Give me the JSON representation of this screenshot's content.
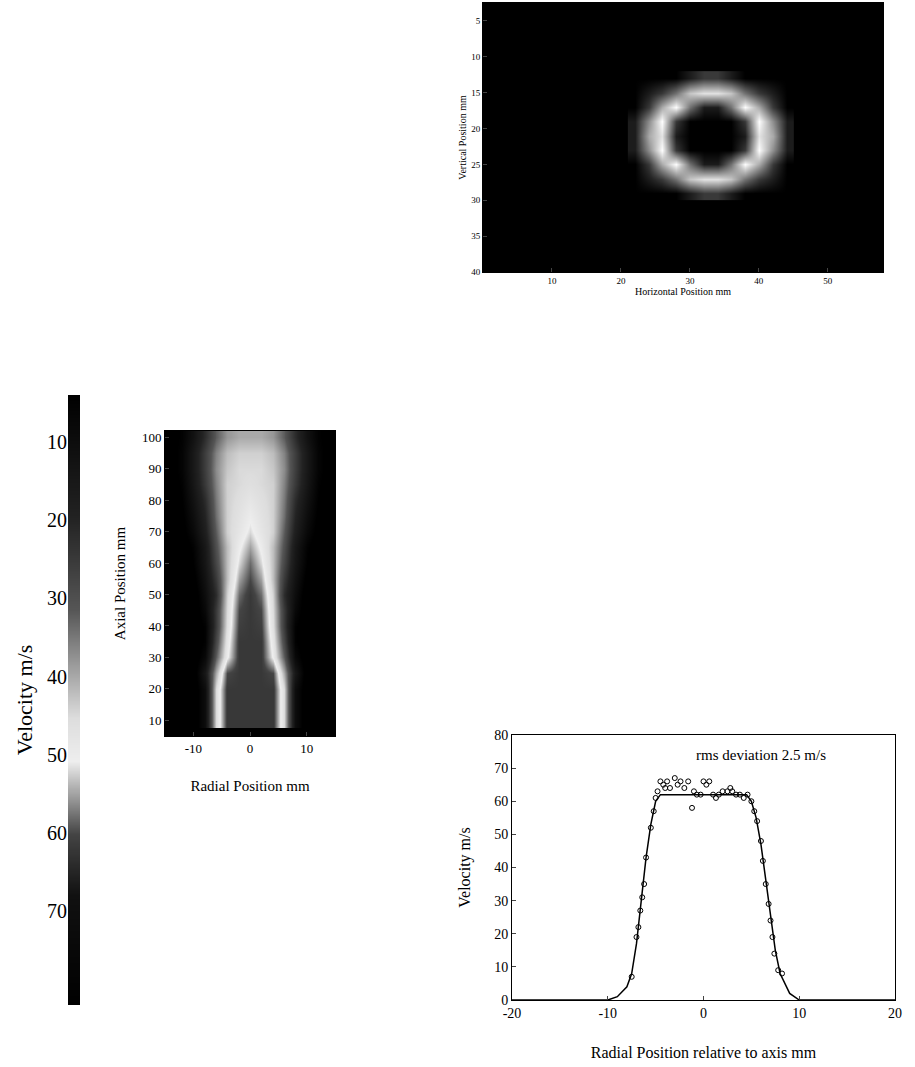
{
  "chart_data": [
    {
      "type": "heatmap",
      "x_label": "Horizontal Position mm",
      "y_label": "Vertical Position mm",
      "x": [
        22,
        24,
        26,
        28,
        30,
        32,
        34,
        36,
        38,
        40,
        42,
        44
      ],
      "y": [
        13,
        15,
        17,
        19,
        21,
        23,
        25,
        27,
        29
      ],
      "z": [
        [
          0,
          0,
          0,
          0,
          1,
          2,
          2,
          1,
          0,
          0,
          0,
          0
        ],
        [
          0,
          1,
          2,
          4,
          7,
          8,
          8,
          7,
          4,
          2,
          1,
          0
        ],
        [
          0,
          2,
          6,
          9,
          4,
          1,
          1,
          4,
          9,
          6,
          2,
          0
        ],
        [
          1,
          5,
          9,
          2,
          0,
          0,
          0,
          0,
          2,
          9,
          5,
          1
        ],
        [
          1,
          6,
          8,
          1,
          0,
          0,
          0,
          0,
          1,
          8,
          6,
          1
        ],
        [
          1,
          5,
          9,
          2,
          0,
          0,
          0,
          0,
          2,
          9,
          5,
          1
        ],
        [
          0,
          2,
          6,
          9,
          4,
          1,
          1,
          4,
          9,
          6,
          2,
          0
        ],
        [
          0,
          1,
          2,
          4,
          7,
          8,
          8,
          7,
          4,
          2,
          1,
          0
        ],
        [
          0,
          0,
          0,
          0,
          1,
          2,
          2,
          1,
          0,
          0,
          0,
          0
        ]
      ],
      "xlim": [
        0,
        58
      ],
      "ylim": [
        40,
        2.5
      ],
      "xticks": [
        10,
        20,
        30,
        40,
        50
      ],
      "yticks": [
        5,
        10,
        15,
        20,
        25,
        30,
        35,
        40
      ]
    },
    {
      "type": "heatmap",
      "x_label": "Radial Position mm",
      "y_label": "Axial Position mm",
      "x": [
        -14,
        -12,
        -10,
        -8,
        -6,
        -4,
        -2,
        0,
        2,
        4,
        6,
        8,
        10,
        12,
        14
      ],
      "y": [
        10,
        15,
        20,
        25,
        30,
        35,
        40,
        45,
        50,
        55,
        60,
        65,
        70,
        75,
        80,
        85,
        90,
        95,
        100
      ],
      "z": [
        [
          0,
          0,
          0,
          10,
          45,
          62,
          62,
          62,
          62,
          62,
          45,
          10,
          0,
          0,
          0
        ],
        [
          0,
          0,
          0,
          10,
          45,
          62,
          62,
          62,
          62,
          62,
          45,
          10,
          0,
          0,
          0
        ],
        [
          0,
          0,
          0,
          10,
          45,
          62,
          62,
          62,
          62,
          62,
          45,
          10,
          0,
          0,
          0
        ],
        [
          0,
          0,
          0,
          15,
          40,
          60,
          62,
          62,
          62,
          60,
          40,
          15,
          0,
          0,
          0
        ],
        [
          0,
          0,
          0,
          8,
          32,
          50,
          62,
          62,
          62,
          50,
          32,
          8,
          0,
          0,
          0
        ],
        [
          0,
          0,
          0,
          5,
          28,
          48,
          62,
          62,
          62,
          48,
          28,
          5,
          0,
          0,
          0
        ],
        [
          0,
          0,
          0,
          5,
          25,
          46,
          61,
          62,
          61,
          46,
          25,
          5,
          0,
          0,
          0
        ],
        [
          0,
          0,
          0,
          8,
          25,
          45,
          60,
          62,
          60,
          45,
          25,
          8,
          0,
          0,
          0
        ],
        [
          0,
          0,
          0,
          10,
          22,
          44,
          58,
          62,
          58,
          44,
          22,
          10,
          0,
          0,
          0
        ],
        [
          0,
          0,
          2,
          12,
          25,
          42,
          55,
          60,
          55,
          42,
          25,
          12,
          2,
          0,
          0
        ],
        [
          0,
          0,
          4,
          14,
          28,
          42,
          52,
          58,
          52,
          42,
          28,
          14,
          4,
          0,
          0
        ],
        [
          0,
          0,
          5,
          15,
          30,
          42,
          50,
          55,
          50,
          42,
          30,
          15,
          5,
          0,
          0
        ],
        [
          0,
          2,
          8,
          18,
          32,
          44,
          48,
          52,
          48,
          44,
          32,
          18,
          8,
          2,
          0
        ],
        [
          0,
          3,
          10,
          20,
          34,
          44,
          47,
          50,
          47,
          44,
          34,
          20,
          10,
          3,
          0
        ],
        [
          0,
          4,
          12,
          22,
          35,
          44,
          46,
          48,
          46,
          44,
          35,
          22,
          12,
          4,
          0
        ],
        [
          1,
          5,
          14,
          25,
          36,
          44,
          45,
          46,
          45,
          44,
          36,
          25,
          14,
          5,
          1
        ],
        [
          2,
          6,
          15,
          26,
          37,
          43,
          45,
          45,
          45,
          43,
          37,
          26,
          15,
          6,
          2
        ],
        [
          2,
          6,
          15,
          26,
          36,
          42,
          44,
          44,
          44,
          42,
          36,
          26,
          15,
          6,
          2
        ],
        [
          2,
          5,
          12,
          22,
          32,
          38,
          40,
          40,
          40,
          38,
          32,
          22,
          12,
          5,
          2
        ]
      ],
      "xlim": [
        -15,
        15
      ],
      "ylim": [
        5,
        102
      ],
      "xticks": [
        -10,
        0,
        10
      ],
      "yticks": [
        10,
        20,
        30,
        40,
        50,
        60,
        70,
        80,
        90,
        100
      ],
      "colorbar": {
        "title": "Velocity m/s",
        "range": [
          4,
          82
        ],
        "ticks": [
          10,
          20,
          30,
          40,
          50,
          60,
          70
        ]
      }
    },
    {
      "type": "scatter",
      "x_label": "Radial Position relative to axis mm",
      "y_label": "Velocity m/s",
      "xlim": [
        -20,
        20
      ],
      "ylim": [
        0,
        80
      ],
      "xticks": [
        -20,
        -10,
        0,
        10,
        20
      ],
      "yticks": [
        0,
        10,
        20,
        30,
        40,
        50,
        60,
        70,
        80
      ],
      "grid": false,
      "series": [
        {
          "type": "scatter",
          "marker": "open circle",
          "color": "#000000",
          "x": [
            -7.5,
            -7,
            -6.8,
            -6.6,
            -6.4,
            -6.2,
            -6,
            -5.5,
            -5.2,
            -5,
            -4.8,
            -4.5,
            -4.2,
            -4,
            -3.8,
            -3.5,
            -3,
            -2.7,
            -2.4,
            -2,
            -1.6,
            -1.2,
            -1,
            -0.7,
            -0.3,
            0,
            0.3,
            0.6,
            1,
            1.3,
            1.6,
            2,
            2.5,
            2.8,
            3,
            3.4,
            3.8,
            4.2,
            4.6,
            5,
            5.3,
            5.6,
            6,
            6.2,
            6.5,
            6.8,
            7,
            7.2,
            7.4,
            7.8,
            8.2
          ],
          "values": [
            7,
            19,
            22,
            27,
            31,
            35,
            43,
            52,
            57,
            61,
            63,
            66,
            65,
            64,
            66,
            64,
            67,
            65,
            66,
            64,
            66,
            58,
            63,
            62,
            62,
            66,
            65,
            66,
            62,
            61,
            62,
            63,
            63,
            64,
            63,
            62,
            62,
            61,
            62,
            60,
            57,
            54,
            48,
            42,
            35,
            29,
            24,
            19,
            14,
            9,
            8
          ]
        },
        {
          "type": "line",
          "line_style": "solid",
          "color": "#000000",
          "x": [
            -20,
            -10,
            -9,
            -8,
            -7.5,
            -7,
            -6.5,
            -6,
            -5.5,
            -5,
            -4.5,
            4.5,
            5,
            5.5,
            6,
            6.5,
            7,
            7.5,
            8,
            9,
            10,
            20
          ],
          "values": [
            0,
            0,
            1,
            4,
            8,
            17,
            30,
            43,
            53,
            60,
            62,
            62,
            60,
            55,
            47,
            36,
            25,
            15,
            8,
            2,
            0,
            0
          ]
        }
      ],
      "annotations": [
        {
          "text": "rms deviation 2.5 m/s",
          "x": -1,
          "y": 74
        }
      ]
    }
  ]
}
